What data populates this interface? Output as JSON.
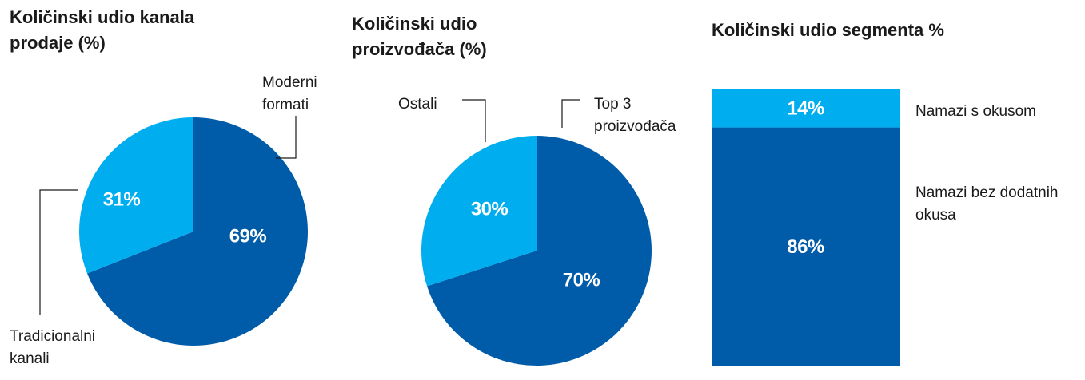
{
  "chart_data": [
    {
      "type": "pie",
      "title": "Količinski udio kanala prodaje (%)",
      "categories": [
        "Moderni formati",
        "Tradicionalni kanali"
      ],
      "values": [
        69,
        31
      ],
      "value_labels": [
        "69%",
        "31%"
      ],
      "colors": [
        "#005ca9",
        "#00adef"
      ]
    },
    {
      "type": "pie",
      "title": "Količinski udio proizvođača (%)",
      "categories": [
        "Top 3 proizvođača",
        "Ostali"
      ],
      "values": [
        70,
        30
      ],
      "value_labels": [
        "70%",
        "30%"
      ],
      "colors": [
        "#005ca9",
        "#00adef"
      ]
    },
    {
      "type": "stacked-bar",
      "title": "Količinski udio segmenta %",
      "series": [
        {
          "name": "Namazi bez dodatnih okusa",
          "color": "#005ca9",
          "values": [
            86
          ],
          "value_labels": [
            "86%"
          ]
        },
        {
          "name": "Namazi s okusom",
          "color": "#00adef",
          "values": [
            14
          ],
          "value_labels": [
            "14%"
          ]
        }
      ]
    }
  ]
}
